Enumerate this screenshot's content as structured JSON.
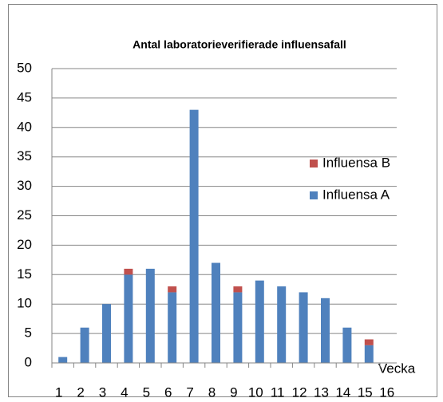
{
  "chart_data": {
    "type": "stacked_bar",
    "title": "Antal laboratorieverifierade influensafall",
    "x_label": "Vecka",
    "categories": [
      "1",
      "2",
      "3",
      "4",
      "5",
      "6",
      "7",
      "8",
      "9",
      "10",
      "11",
      "12",
      "13",
      "14",
      "15",
      "16"
    ],
    "series": [
      {
        "name": "Influensa A",
        "color": "#4f81bd",
        "values": [
          1,
          6,
          10,
          15,
          16,
          12,
          43,
          17,
          12,
          14,
          13,
          12,
          11,
          6,
          3,
          0
        ]
      },
      {
        "name": "Influensa B",
        "color": "#c0504d",
        "values": [
          0,
          0,
          0,
          1,
          0,
          1,
          0,
          0,
          1,
          0,
          0,
          0,
          0,
          0,
          1,
          0
        ]
      }
    ],
    "ylim": [
      0,
      50
    ],
    "yticks": [
      0,
      5,
      10,
      15,
      20,
      25,
      30,
      35,
      40,
      45,
      50
    ],
    "grid": true,
    "legend": "right"
  }
}
